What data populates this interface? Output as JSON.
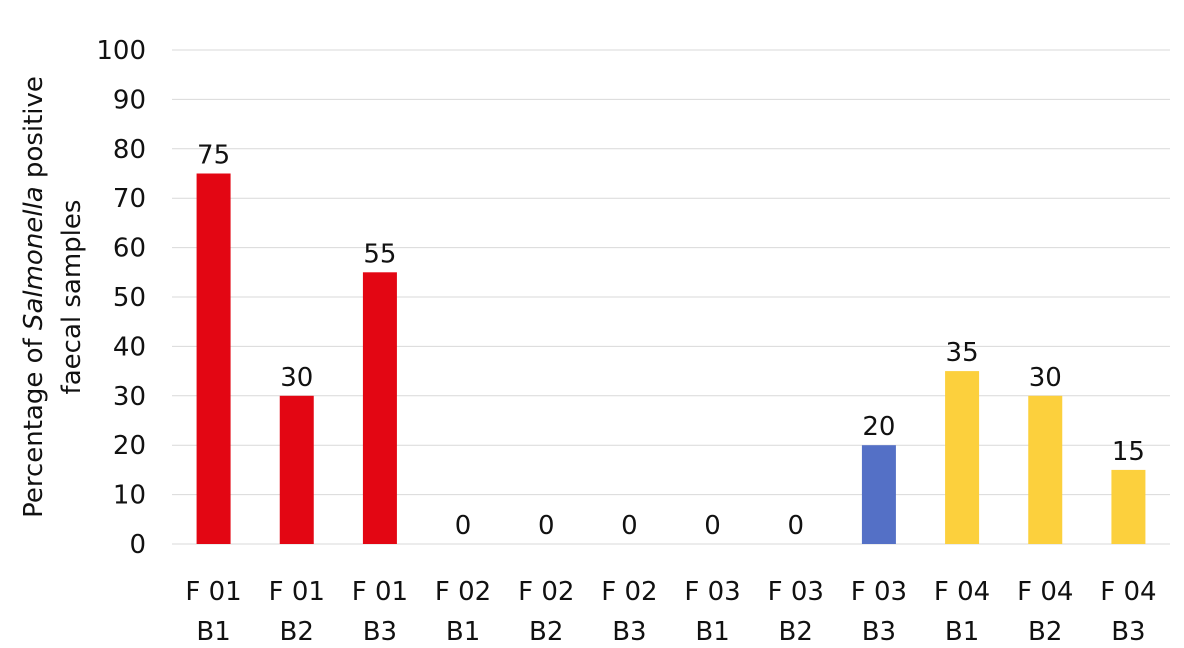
{
  "chart_data": {
    "type": "bar",
    "categories": [
      [
        "F 01",
        "B1"
      ],
      [
        "F 01",
        "B2"
      ],
      [
        "F 01",
        "B3"
      ],
      [
        "F 02",
        "B1"
      ],
      [
        "F 02",
        "B2"
      ],
      [
        "F 02",
        "B3"
      ],
      [
        "F 03",
        "B1"
      ],
      [
        "F 03",
        "B2"
      ],
      [
        "F 03",
        "B3"
      ],
      [
        "F 04",
        "B1"
      ],
      [
        "F 04",
        "B2"
      ],
      [
        "F 04",
        "B3"
      ]
    ],
    "values": [
      75,
      30,
      55,
      0,
      0,
      0,
      0,
      0,
      20,
      35,
      30,
      15
    ],
    "bar_colors": [
      "#e30613",
      "#e30613",
      "#e30613",
      "#e30613",
      "#e30613",
      "#e30613",
      "#e30613",
      "#e30613",
      "#5470c6",
      "#fcd03d",
      "#fcd03d",
      "#fcd03d"
    ],
    "ylabel_line1_prefix": "Percentage of ",
    "ylabel_line1_italic": "Salmonella",
    "ylabel_line1_suffix": " positive",
    "ylabel_line2": "faecal samples",
    "ylim": [
      0,
      100
    ],
    "yticks": [
      0,
      10,
      20,
      30,
      40,
      50,
      60,
      70,
      80,
      90,
      100
    ],
    "grid": true
  }
}
